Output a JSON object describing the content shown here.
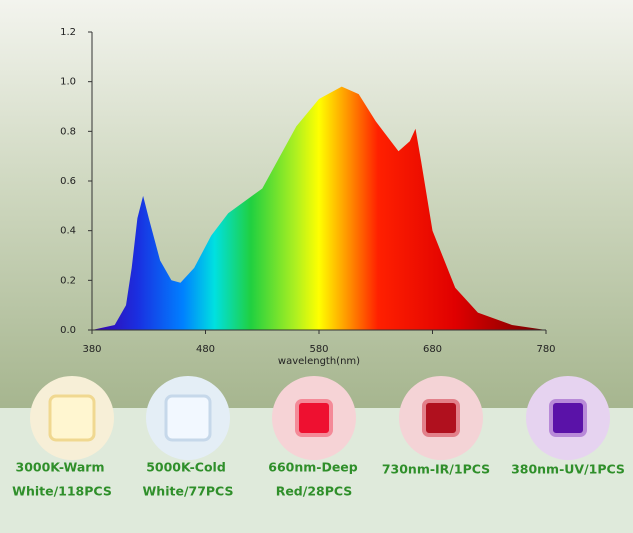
{
  "chart_data": {
    "type": "area",
    "x": [
      380,
      400,
      410,
      415,
      420,
      425,
      430,
      440,
      450,
      458,
      470,
      485,
      500,
      530,
      560,
      580,
      600,
      615,
      630,
      650,
      660,
      665,
      670,
      680,
      700,
      720,
      750,
      780
    ],
    "values": [
      0,
      0.02,
      0.1,
      0.25,
      0.45,
      0.54,
      0.45,
      0.28,
      0.2,
      0.19,
      0.25,
      0.38,
      0.47,
      0.57,
      0.82,
      0.93,
      0.98,
      0.95,
      0.84,
      0.72,
      0.76,
      0.81,
      0.68,
      0.4,
      0.17,
      0.07,
      0.02,
      0
    ],
    "xlim": [
      380,
      780
    ],
    "xticks": [
      380,
      480,
      580,
      680,
      780
    ],
    "ylim": [
      0,
      1.2
    ],
    "yticks": [
      {
        "value": 0,
        "label": "0.0"
      },
      0.2,
      0.4,
      0.6,
      0.8,
      {
        "value": 1,
        "label": "1.0"
      },
      1.2
    ],
    "xlabel": "wavelength(nm)"
  },
  "leds": [
    {
      "line1": "3000K-Warm",
      "line2": "White/118PCS"
    },
    {
      "line1": "5000K-Cold",
      "line2": "White/77PCS"
    },
    {
      "line1": "660nm-Deep",
      "line2": "Red/28PCS"
    },
    {
      "line1": "730nm-IR/1PCS"
    },
    {
      "line1": "380nm-UV/1PCS"
    }
  ]
}
